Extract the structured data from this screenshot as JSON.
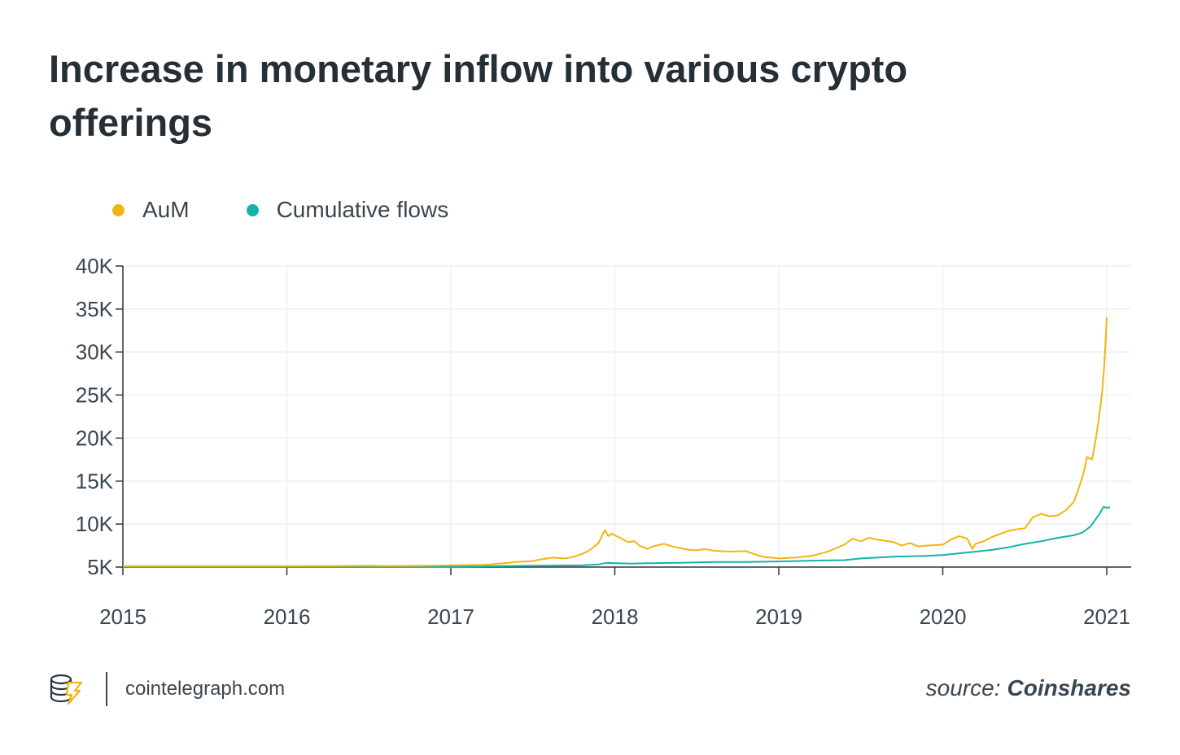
{
  "title": "Increase in monetary inflow into various crypto offerings",
  "legend": {
    "items": [
      {
        "label": "AuM",
        "color": "#f2b50f"
      },
      {
        "label": "Cumulative flows",
        "color": "#13b3a9"
      }
    ]
  },
  "footer": {
    "brand": "cointelegraph.com",
    "source_label": "source:",
    "source_value": "Coinshares"
  },
  "chart_data": {
    "type": "line",
    "title": "Increase in monetary inflow into various crypto offerings",
    "xlabel": "",
    "ylabel": "",
    "x_ticks": [
      "2015",
      "2016",
      "2017",
      "2018",
      "2019",
      "2020",
      "2021"
    ],
    "y_ticks": [
      "5K",
      "10K",
      "15K",
      "20K",
      "25K",
      "30K",
      "35K",
      "40K"
    ],
    "xlim": [
      2015,
      2021.15
    ],
    "ylim": [
      5000,
      40000
    ],
    "grid": true,
    "legend_position": "top-left",
    "series": [
      {
        "name": "AuM",
        "color": "#f2b50f",
        "points": [
          [
            2015.0,
            5100
          ],
          [
            2015.5,
            5100
          ],
          [
            2016.0,
            5100
          ],
          [
            2016.3,
            5120
          ],
          [
            2016.5,
            5150
          ],
          [
            2016.6,
            5120
          ],
          [
            2016.8,
            5140
          ],
          [
            2017.0,
            5200
          ],
          [
            2017.2,
            5260
          ],
          [
            2017.3,
            5400
          ],
          [
            2017.4,
            5600
          ],
          [
            2017.5,
            5700
          ],
          [
            2017.55,
            5900
          ],
          [
            2017.62,
            6100
          ],
          [
            2017.7,
            6000
          ],
          [
            2017.75,
            6200
          ],
          [
            2017.8,
            6500
          ],
          [
            2017.85,
            7000
          ],
          [
            2017.9,
            7800
          ],
          [
            2017.94,
            9300
          ],
          [
            2017.96,
            8600
          ],
          [
            2017.98,
            8900
          ],
          [
            2018.0,
            8700
          ],
          [
            2018.04,
            8300
          ],
          [
            2018.08,
            7900
          ],
          [
            2018.12,
            8000
          ],
          [
            2018.15,
            7500
          ],
          [
            2018.2,
            7100
          ],
          [
            2018.23,
            7400
          ],
          [
            2018.3,
            7700
          ],
          [
            2018.35,
            7400
          ],
          [
            2018.4,
            7200
          ],
          [
            2018.45,
            7000
          ],
          [
            2018.5,
            6950
          ],
          [
            2018.55,
            7100
          ],
          [
            2018.6,
            6900
          ],
          [
            2018.7,
            6800
          ],
          [
            2018.8,
            6850
          ],
          [
            2018.85,
            6500
          ],
          [
            2018.9,
            6200
          ],
          [
            2019.0,
            6000
          ],
          [
            2019.1,
            6100
          ],
          [
            2019.2,
            6300
          ],
          [
            2019.3,
            6800
          ],
          [
            2019.4,
            7600
          ],
          [
            2019.45,
            8300
          ],
          [
            2019.5,
            8000
          ],
          [
            2019.55,
            8400
          ],
          [
            2019.6,
            8200
          ],
          [
            2019.7,
            7900
          ],
          [
            2019.75,
            7500
          ],
          [
            2019.8,
            7800
          ],
          [
            2019.85,
            7400
          ],
          [
            2019.9,
            7500
          ],
          [
            2020.0,
            7600
          ],
          [
            2020.05,
            8200
          ],
          [
            2020.1,
            8600
          ],
          [
            2020.15,
            8300
          ],
          [
            2020.18,
            7100
          ],
          [
            2020.2,
            7700
          ],
          [
            2020.25,
            8000
          ],
          [
            2020.3,
            8500
          ],
          [
            2020.4,
            9200
          ],
          [
            2020.45,
            9400
          ],
          [
            2020.5,
            9500
          ],
          [
            2020.55,
            10800
          ],
          [
            2020.6,
            11200
          ],
          [
            2020.65,
            10900
          ],
          [
            2020.7,
            11000
          ],
          [
            2020.75,
            11600
          ],
          [
            2020.8,
            12600
          ],
          [
            2020.83,
            14200
          ],
          [
            2020.86,
            16000
          ],
          [
            2020.88,
            17800
          ],
          [
            2020.91,
            17500
          ],
          [
            2020.93,
            19500
          ],
          [
            2020.95,
            22000
          ],
          [
            2020.97,
            25000
          ],
          [
            2020.985,
            28500
          ],
          [
            2020.995,
            32000
          ],
          [
            2021.0,
            34000
          ]
        ]
      },
      {
        "name": "Cumulative flows",
        "color": "#13b3a9",
        "points": [
          [
            2015.0,
            5000
          ],
          [
            2016.0,
            5000
          ],
          [
            2016.5,
            5000
          ],
          [
            2017.0,
            5050
          ],
          [
            2017.5,
            5150
          ],
          [
            2017.8,
            5200
          ],
          [
            2017.9,
            5300
          ],
          [
            2017.95,
            5500
          ],
          [
            2018.0,
            5450
          ],
          [
            2018.1,
            5400
          ],
          [
            2018.2,
            5450
          ],
          [
            2018.4,
            5500
          ],
          [
            2018.6,
            5600
          ],
          [
            2018.8,
            5600
          ],
          [
            2019.0,
            5650
          ],
          [
            2019.1,
            5700
          ],
          [
            2019.2,
            5750
          ],
          [
            2019.4,
            5800
          ],
          [
            2019.5,
            6000
          ],
          [
            2019.6,
            6100
          ],
          [
            2019.7,
            6200
          ],
          [
            2019.8,
            6250
          ],
          [
            2019.9,
            6300
          ],
          [
            2020.0,
            6400
          ],
          [
            2020.1,
            6600
          ],
          [
            2020.2,
            6800
          ],
          [
            2020.3,
            7000
          ],
          [
            2020.4,
            7300
          ],
          [
            2020.5,
            7700
          ],
          [
            2020.6,
            8000
          ],
          [
            2020.7,
            8400
          ],
          [
            2020.8,
            8700
          ],
          [
            2020.85,
            9000
          ],
          [
            2020.9,
            9700
          ],
          [
            2020.93,
            10500
          ],
          [
            2020.96,
            11300
          ],
          [
            2020.98,
            12000
          ],
          [
            2021.0,
            11900
          ],
          [
            2021.02,
            11950
          ]
        ]
      }
    ]
  }
}
